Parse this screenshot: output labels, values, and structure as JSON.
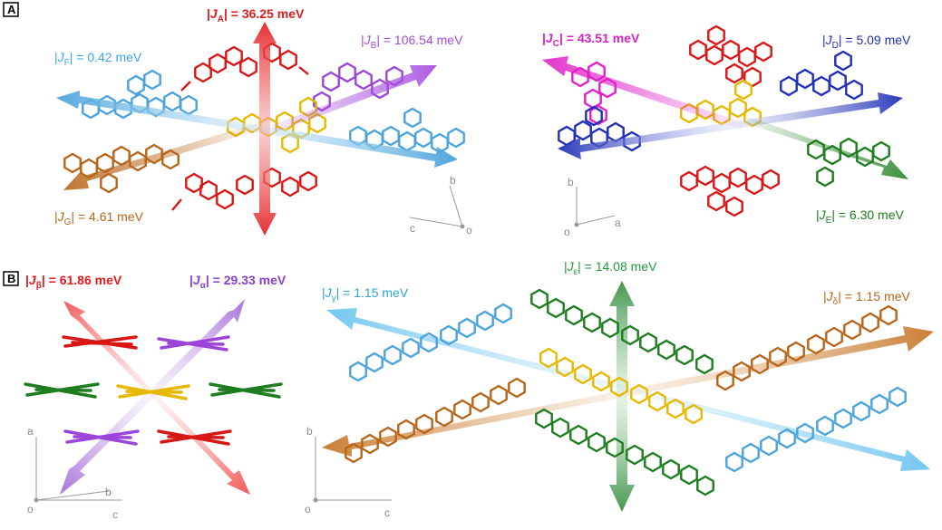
{
  "panels": [
    {
      "id": "A",
      "label": "A"
    },
    {
      "id": "B",
      "label": "B"
    }
  ],
  "couplings": {
    "JA": {
      "symbol": "J",
      "sub": "A",
      "value": " = 36.25 meV",
      "color": "#e3191c",
      "bold": true
    },
    "JB": {
      "symbol": "J",
      "sub": "B",
      "value": " = 106.54 meV",
      "color": "#a64dde",
      "bold": false
    },
    "JF": {
      "symbol": "J",
      "sub": "F",
      "value": " = 0.42 meV",
      "color": "#3aa6e6",
      "bold": false
    },
    "JG": {
      "symbol": "J",
      "sub": "G",
      "value": " = 4.61 meV",
      "color": "#b8651a",
      "bold": false
    },
    "JC": {
      "symbol": "J",
      "sub": "C",
      "value": " = 43.51 meV",
      "color": "#e020c8",
      "bold": true
    },
    "JD": {
      "symbol": "J",
      "sub": "D",
      "value": " = 5.09 meV",
      "color": "#1f2fb8",
      "bold": false
    },
    "JE": {
      "symbol": "J",
      "sub": "E",
      "value": " =  6.30 meV",
      "color": "#1e7d1e",
      "bold": false
    },
    "Jbeta": {
      "symbol": "J",
      "sub": "β",
      "value": " = 61.86 meV",
      "color": "#e3191c",
      "bold": true
    },
    "Jalpha": {
      "symbol": "J",
      "sub": "α",
      "value": " = 29.33 meV",
      "color": "#8a3fcf",
      "bold": true
    },
    "Jeps": {
      "symbol": "J",
      "sub": "ε",
      "value": " = 14.08 meV",
      "color": "#1e9a3a",
      "bold": false
    },
    "Jgamma": {
      "symbol": "J",
      "sub": "γ",
      "value": " = 1.15 meV",
      "color": "#2aa5e0",
      "bold": false
    },
    "Jdelta": {
      "symbol": "J",
      "sub": "δ",
      "value": " = 1.15 meV",
      "color": "#b8651a",
      "bold": false
    }
  },
  "axes": {
    "A1": {
      "o": "o",
      "c": "c",
      "b": "b"
    },
    "A2": {
      "o": "o",
      "b": "b",
      "a": "a"
    },
    "B1": {
      "o": "o",
      "a": "a",
      "b": "b",
      "c": "c"
    },
    "B2": {
      "o": "o",
      "b": "b",
      "c": "c"
    }
  },
  "colors": {
    "red": "#e3191c",
    "purple": "#a64dde",
    "lightblue": "#4aa3dc",
    "brown": "#b8651a",
    "gold": "#e6b800",
    "magenta": "#e020c8",
    "blue": "#1f2fb8",
    "green": "#1e7d1e",
    "axis": "#9a9a9a"
  }
}
